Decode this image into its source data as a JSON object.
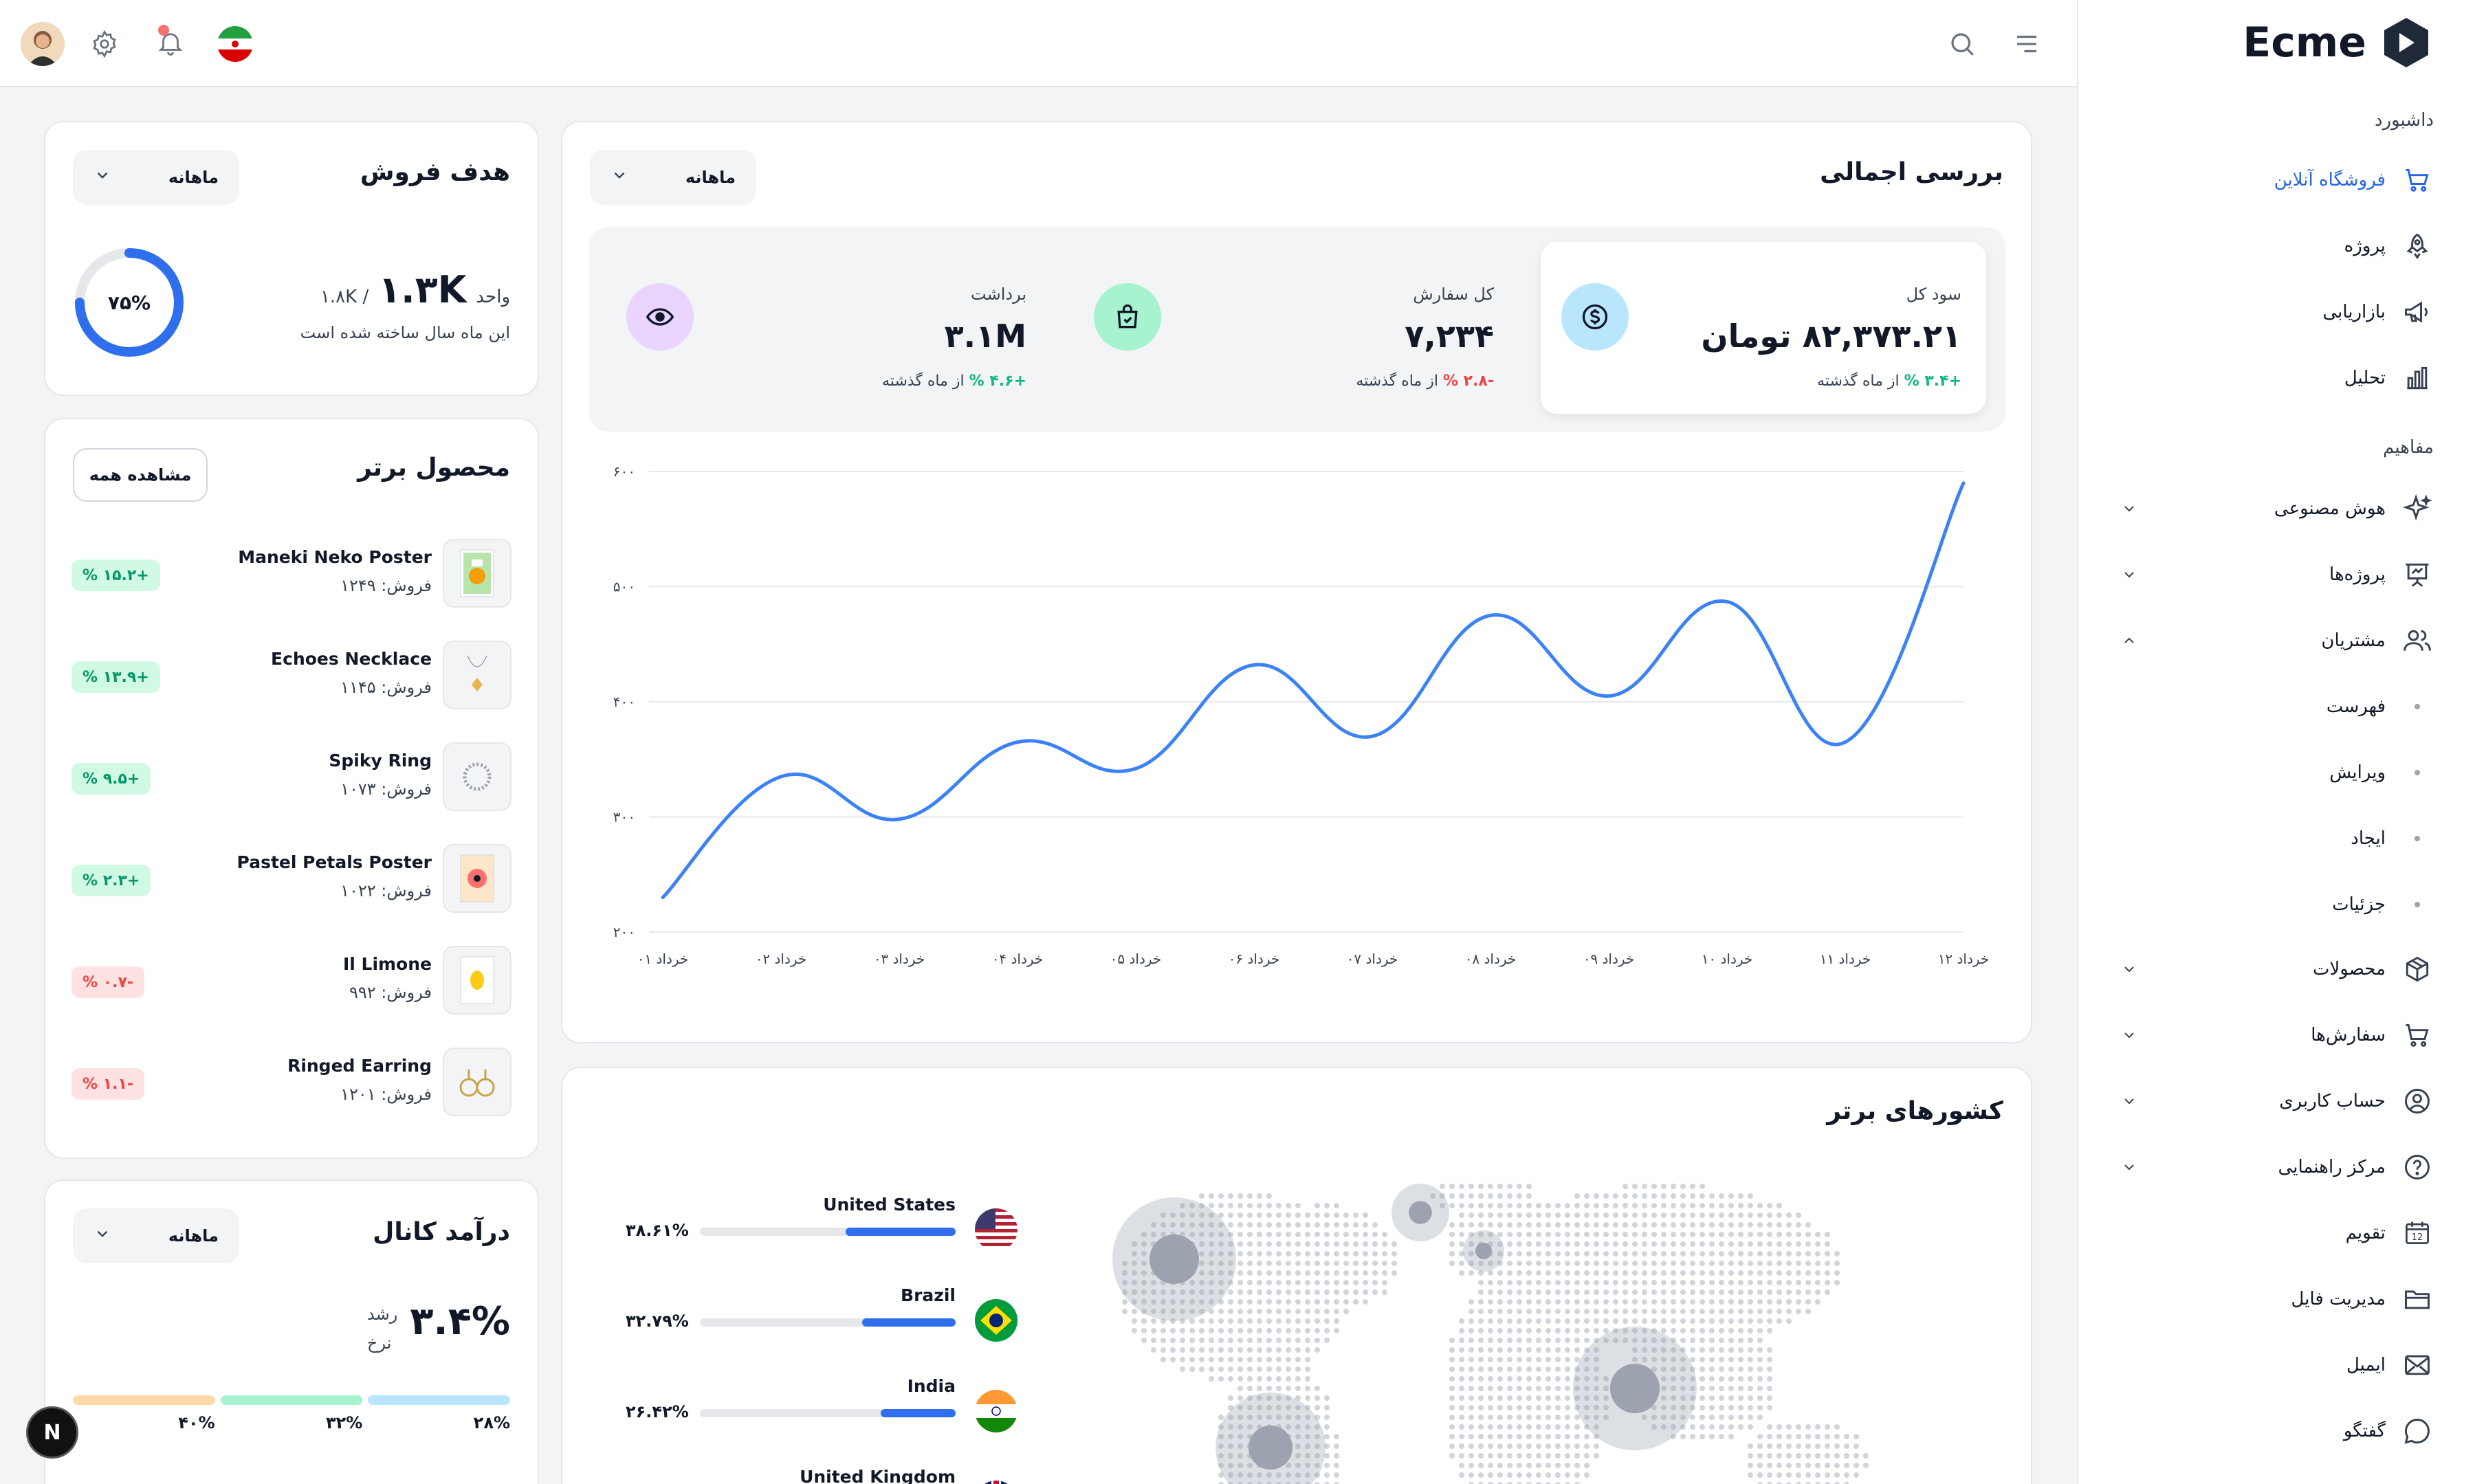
{
  "brand": {
    "name": "Ecme"
  },
  "sidebar": {
    "groups": [
      "داشبورد",
      "مفاهیم"
    ],
    "dashboard_items": [
      {
        "label": "فروشگاه آنلاین",
        "icon": "cart-icon",
        "active": true
      },
      {
        "label": "پروژه",
        "icon": "rocket-icon"
      },
      {
        "label": "بازاریابی",
        "icon": "megaphone-icon"
      },
      {
        "label": "تحلیل",
        "icon": "bar-chart-icon"
      }
    ],
    "concept_items": [
      {
        "label": "هوش مصنوعی",
        "icon": "sparkle-icon",
        "chevron": "down"
      },
      {
        "label": "پروژه‌ها",
        "icon": "presentation-icon",
        "chevron": "down"
      },
      {
        "label": "مشتریان",
        "icon": "users-icon",
        "chevron": "up"
      }
    ],
    "customer_subitems": [
      "فهرست",
      "ویرایش",
      "ایجاد",
      "جزئیات"
    ],
    "more_items": [
      {
        "label": "محصولات",
        "icon": "box-icon",
        "chevron": "down"
      },
      {
        "label": "سفارش‌ها",
        "icon": "cart-icon",
        "chevron": "down"
      },
      {
        "label": "حساب کاربری",
        "icon": "user-circle-icon",
        "chevron": "down"
      },
      {
        "label": "مرکز راهنمایی",
        "icon": "help-icon",
        "chevron": "down"
      },
      {
        "label": "تقویم",
        "icon": "calendar-icon",
        "calendar_day": "12"
      },
      {
        "label": "مدیریت فایل",
        "icon": "folder-icon"
      },
      {
        "label": "ایمیل",
        "icon": "mail-icon"
      },
      {
        "label": "گفتگو",
        "icon": "chat-icon"
      }
    ]
  },
  "header": {
    "icons": [
      "avatar",
      "gear-icon",
      "bell-icon",
      "flag-iran-icon",
      "search-icon",
      "menu-icon"
    ]
  },
  "overview": {
    "title": "بررسی اجمالی",
    "period": "ماهانه",
    "stats": [
      {
        "label": "سود کل",
        "value": "۸۲,۳۷۳.۲۱ تومان",
        "delta": "+۳.۴ %",
        "delta_suffix": "از ماه گذشته",
        "trend": "up",
        "icon": "dollar-icon",
        "color": "#bae6fd"
      },
      {
        "label": "کل سفارش",
        "value": "۷,۲۳۴",
        "delta": "-۲.۸ %",
        "delta_suffix": "از ماه گذشته",
        "trend": "down",
        "icon": "shopping-bag-icon",
        "color": "#a7f3d0"
      },
      {
        "label": "برداشت",
        "value": "۳.۱M",
        "delta": "+۴.۶ %",
        "delta_suffix": "از ماه گذشته",
        "trend": "up",
        "icon": "eye-icon",
        "color": "#e9d5ff"
      }
    ]
  },
  "chart_data": {
    "type": "line",
    "x": [
      "خرداد ۰۱",
      "خرداد ۰۲",
      "خرداد ۰۳",
      "خرداد ۰۴",
      "خرداد ۰۵",
      "خرداد ۰۶",
      "خرداد ۰۷",
      "خرداد ۰۸",
      "خرداد ۰۹",
      "خرداد ۱۰",
      "خرداد ۱۱",
      "خرداد ۱۲"
    ],
    "series": [
      {
        "values": [
          230,
          335,
          298,
          365,
          342,
          432,
          370,
          475,
          405,
          487,
          365,
          590
        ],
        "color": "#3b82f6"
      }
    ],
    "y_ticks": [
      "۲۰۰",
      "۳۰۰",
      "۴۰۰",
      "۵۰۰",
      "۶۰۰"
    ],
    "ylim": [
      200,
      600
    ],
    "grid": true
  },
  "sales_target": {
    "title": "هدف فروش",
    "period": "ماهانه",
    "value": "۱.۳K",
    "target": "/ ۱.۸K",
    "unit": "واحد",
    "caption": "این ماه سال ساخته شده است",
    "percent_label": "۷۵%",
    "percent": 0.75
  },
  "top_products": {
    "title": "محصول برتر",
    "view_all": "مشاهده همه",
    "sales_prefix": "فروش:",
    "items": [
      {
        "name": "Maneki Neko Poster",
        "sales": "۱۲۴۹",
        "change": "+۱۵.۲ %",
        "trend": "up",
        "thumb": "poster-icon"
      },
      {
        "name": "Echoes Necklace",
        "sales": "۱۱۴۵",
        "change": "+۱۳.۹ %",
        "trend": "up",
        "thumb": "necklace-icon"
      },
      {
        "name": "Spiky Ring",
        "sales": "۱۰۷۳",
        "change": "+۹.۵ %",
        "trend": "up",
        "thumb": "ring-icon"
      },
      {
        "name": "Pastel Petals Poster",
        "sales": "۱۰۲۲",
        "change": "+۲.۳ %",
        "trend": "up",
        "thumb": "poster-icon"
      },
      {
        "name": "Il Limone",
        "sales": "۹۹۲",
        "change": "-۰.۷ %",
        "trend": "down",
        "thumb": "lemon-poster-icon"
      },
      {
        "name": "Ringed Earring",
        "sales": "۱۲۰۱",
        "change": "-۱.۱ %",
        "trend": "down",
        "thumb": "earring-icon"
      }
    ]
  },
  "top_countries": {
    "title": "کشورهای برتر",
    "items": [
      {
        "name": "United States",
        "percent_label": "۳۸.۶۱%",
        "percent": 38.61,
        "flag": "us-flag-icon"
      },
      {
        "name": "Brazil",
        "percent_label": "۳۲.۷۹%",
        "percent": 32.79,
        "flag": "brazil-flag-icon"
      },
      {
        "name": "India",
        "percent_label": "۲۶.۴۲%",
        "percent": 26.42,
        "flag": "india-flag-icon"
      },
      {
        "name": "United Kingdom",
        "percent_label": "",
        "percent": null,
        "flag": "uk-flag-icon"
      }
    ]
  },
  "channel_revenue": {
    "title": "درآمد کانال",
    "period": "ماهانه",
    "growth_value": "۳.۴%",
    "growth_label_1": "رشد",
    "growth_label_2": "نرخ",
    "segments": [
      {
        "label": "۴۰%",
        "color": "#fcd9a8"
      },
      {
        "label": "۳۲%",
        "color": "#a7f3d0"
      },
      {
        "label": "۲۸%",
        "color": "#bae6fd"
      }
    ]
  },
  "floating_button": {
    "label": "N"
  }
}
